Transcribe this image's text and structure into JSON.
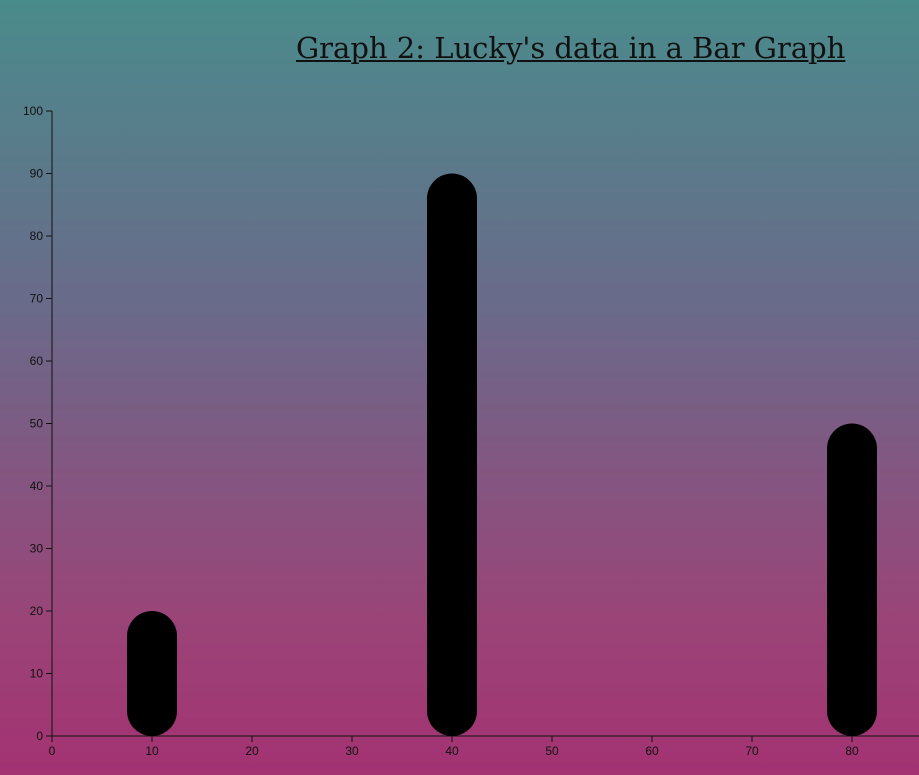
{
  "chart_data": {
    "type": "bar",
    "title": "Graph 2: Lucky's data in a Bar Graph",
    "xlabel": "",
    "ylabel": "",
    "x": [
      10,
      40,
      80
    ],
    "values": [
      20,
      90,
      50
    ],
    "xlim": [
      0,
      87
    ],
    "ylim": [
      0,
      100
    ],
    "x_ticks": [
      0,
      10,
      20,
      30,
      40,
      50,
      60,
      70,
      80
    ],
    "y_ticks": [
      0,
      10,
      20,
      30,
      40,
      50,
      60,
      70,
      80,
      90,
      100
    ],
    "grid": false,
    "bar_color": "#000000",
    "bar_shape": "rounded"
  }
}
